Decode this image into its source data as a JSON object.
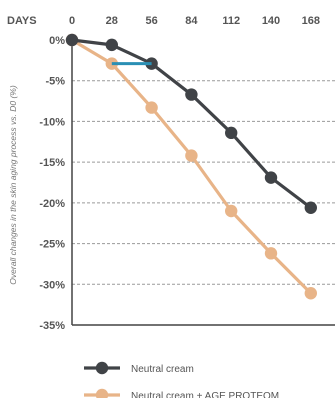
{
  "chart_data": {
    "type": "line",
    "xlabel": "DAYS",
    "ylabel": "Overall changes in the skin aging process vs. D0 (%)",
    "x": [
      0,
      28,
      56,
      84,
      112,
      140,
      168
    ],
    "x_tick_labels": [
      "0",
      "28",
      "56",
      "84",
      "112",
      "140",
      "168"
    ],
    "y_tick_labels": [
      "0%",
      "-5%",
      "-10%",
      "-15%",
      "-20%",
      "-25%",
      "-30%",
      "-35%"
    ],
    "ylim": [
      -35,
      0
    ],
    "y_ticks": [
      0,
      -5,
      -10,
      -15,
      -20,
      -25,
      -30,
      -35
    ],
    "grid": true,
    "legend_position": "bottom",
    "series": [
      {
        "name": "Neutral cream",
        "color": "#404347",
        "values": [
          0,
          -0.6,
          -2.9,
          -6.7,
          -11.4,
          -16.9,
          -20.6
        ]
      },
      {
        "name": "Neutral cream + AGE PROTEOM",
        "color": "#e8b488",
        "values": [
          0,
          -2.9,
          -8.3,
          -14.2,
          -21.0,
          -26.2,
          -31.1
        ]
      }
    ],
    "annotations": [
      {
        "type": "highlight-segment",
        "color": "#2a8fb4",
        "x_range": [
          28,
          56
        ],
        "y": -2.9
      }
    ],
    "colors": {
      "axis": "#444444",
      "grid": "#9a9a9a",
      "text": "#555555"
    }
  }
}
